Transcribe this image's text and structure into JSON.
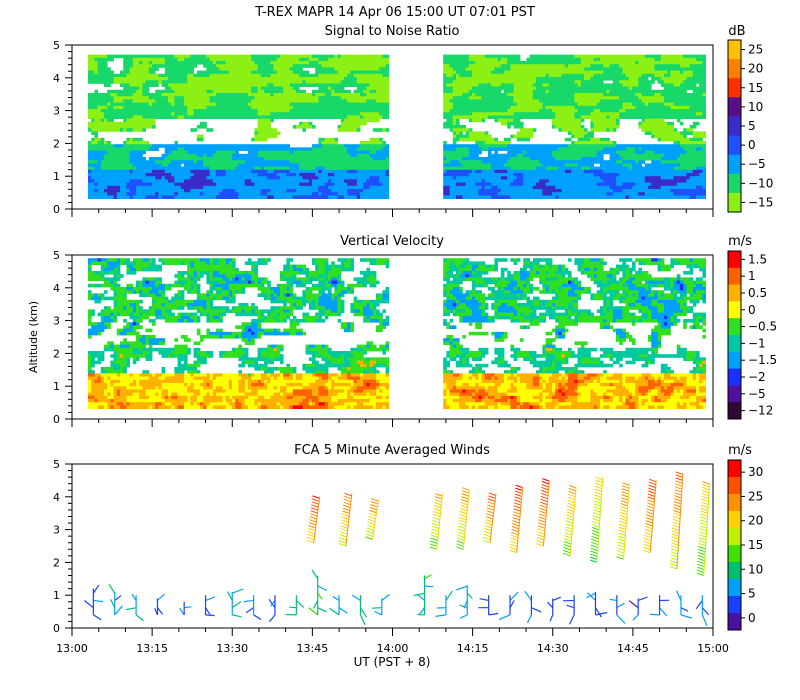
{
  "header": {
    "title": "T-REX   MAPR 14 Apr 06   15:00 UT   07:01   PST"
  },
  "y_axis_label": "Altitude (km)",
  "x_axis_label": "UT  (PST + 8)",
  "chart_data": [
    {
      "type": "heatmap",
      "title": "Signal to Noise Ratio",
      "colorbar_unit": "dB",
      "colorbar_ticks": [
        "25",
        "20",
        "15",
        "10",
        "5",
        "0",
        "−5",
        "−10",
        "−15"
      ],
      "colorbar_colors": [
        "#ffc000",
        "#ff8000",
        "#ff3000",
        "#5a0f8a",
        "#3a2cc8",
        "#1e50ff",
        "#00a0ff",
        "#18d86a",
        "#8cf014"
      ],
      "xlim": [
        "13:00",
        "15:00"
      ],
      "ylim": [
        0,
        5
      ],
      "y_ticks": [
        "0",
        "1",
        "2",
        "3",
        "4",
        "5"
      ],
      "data_gap": [
        "13:59",
        "14:09"
      ]
    },
    {
      "type": "heatmap",
      "title": "Vertical Velocity",
      "colorbar_unit": "m/s",
      "colorbar_ticks": [
        "1.5",
        "1",
        "0.5",
        "0",
        "−0.5",
        "−1",
        "−1.5",
        "−2",
        "−5",
        "−12"
      ],
      "colorbar_colors": [
        "#ff0000",
        "#ff6000",
        "#ffb000",
        "#ffff00",
        "#30e020",
        "#00c8a0",
        "#00a0ff",
        "#1a30ff",
        "#5010a0",
        "#300830"
      ],
      "xlim": [
        "13:00",
        "15:00"
      ],
      "ylim": [
        0,
        5
      ],
      "y_ticks": [
        "0",
        "1",
        "2",
        "3",
        "4",
        "5"
      ],
      "data_gap": [
        "13:59",
        "14:09"
      ]
    },
    {
      "type": "scatter",
      "title": "FCA 5 Minute Averaged Winds",
      "colorbar_unit": "m/s",
      "colorbar_ticks": [
        "30",
        "25",
        "20",
        "15",
        "10",
        "5",
        "0"
      ],
      "colorbar_colors": [
        "#ff0000",
        "#ff5000",
        "#ff9000",
        "#ffd000",
        "#c0f000",
        "#40e000",
        "#00c070",
        "#00a0ff",
        "#1a40ff",
        "#4a10a0"
      ],
      "xlim": [
        "13:00",
        "15:00"
      ],
      "ylim": [
        0,
        5
      ],
      "y_ticks": [
        "0",
        "1",
        "2",
        "3",
        "4",
        "5"
      ],
      "x_ticks": [
        "13:00",
        "13:15",
        "13:30",
        "13:45",
        "14:00",
        "14:15",
        "14:30",
        "14:45",
        "15:00"
      ],
      "low_level_profiles": [
        {
          "time": "13:04",
          "top": 1.2,
          "speed": 5
        },
        {
          "time": "13:08",
          "top": 1.1,
          "speed": 7
        },
        {
          "time": "13:12",
          "top": 1.0,
          "speed": 8
        },
        {
          "time": "13:16",
          "top": 0.9,
          "speed": 5
        },
        {
          "time": "13:21",
          "top": 0.8,
          "speed": 4
        },
        {
          "time": "13:25",
          "top": 1.0,
          "speed": 5
        },
        {
          "time": "13:30",
          "top": 1.1,
          "speed": 8
        },
        {
          "time": "13:34",
          "top": 1.0,
          "speed": 6
        },
        {
          "time": "13:38",
          "top": 1.0,
          "speed": 5
        },
        {
          "time": "13:42",
          "top": 1.0,
          "speed": 9
        },
        {
          "time": "13:46",
          "top": 1.6,
          "speed": 10
        },
        {
          "time": "13:50",
          "top": 1.0,
          "speed": 8
        },
        {
          "time": "13:54",
          "top": 1.0,
          "speed": 9
        },
        {
          "time": "13:58",
          "top": 0.9,
          "speed": 6
        },
        {
          "time": "14:06",
          "top": 1.6,
          "speed": 10
        },
        {
          "time": "14:10",
          "top": 1.0,
          "speed": 7
        },
        {
          "time": "14:14",
          "top": 1.3,
          "speed": 8
        },
        {
          "time": "14:18",
          "top": 1.0,
          "speed": 4
        },
        {
          "time": "14:22",
          "top": 1.0,
          "speed": 5
        },
        {
          "time": "14:26",
          "top": 1.0,
          "speed": 4
        },
        {
          "time": "14:30",
          "top": 0.9,
          "speed": 3
        },
        {
          "time": "14:34",
          "top": 1.0,
          "speed": 3
        },
        {
          "time": "14:38",
          "top": 1.1,
          "speed": 5
        },
        {
          "time": "14:42",
          "top": 1.0,
          "speed": 5
        },
        {
          "time": "14:46",
          "top": 0.9,
          "speed": 4
        },
        {
          "time": "14:50",
          "top": 1.0,
          "speed": 5
        },
        {
          "time": "14:54",
          "top": 1.0,
          "speed": 6
        },
        {
          "time": "14:58",
          "top": 1.0,
          "speed": 7
        }
      ],
      "upper_level_profiles": [
        {
          "time": "13:46",
          "bottom": 2.6,
          "top": 4.0,
          "speed": 25
        },
        {
          "time": "13:52",
          "bottom": 2.5,
          "top": 4.1,
          "speed": 22
        },
        {
          "time": "13:57",
          "bottom": 2.7,
          "top": 3.9,
          "speed": 21
        },
        {
          "time": "14:09",
          "bottom": 2.4,
          "top": 4.1,
          "speed": 19
        },
        {
          "time": "14:14",
          "bottom": 2.4,
          "top": 4.2,
          "speed": 20
        },
        {
          "time": "14:19",
          "bottom": 2.6,
          "top": 4.1,
          "speed": 23
        },
        {
          "time": "14:24",
          "bottom": 2.3,
          "top": 4.3,
          "speed": 25
        },
        {
          "time": "14:29",
          "bottom": 2.5,
          "top": 4.5,
          "speed": 25
        },
        {
          "time": "14:34",
          "bottom": 2.2,
          "top": 4.3,
          "speed": 19
        },
        {
          "time": "14:39",
          "bottom": 2.0,
          "top": 4.6,
          "speed": 17
        },
        {
          "time": "14:44",
          "bottom": 2.1,
          "top": 4.4,
          "speed": 21
        },
        {
          "time": "14:49",
          "bottom": 2.3,
          "top": 4.5,
          "speed": 24
        },
        {
          "time": "14:54",
          "bottom": 1.8,
          "top": 4.7,
          "speed": 22
        },
        {
          "time": "14:59",
          "bottom": 1.6,
          "top": 4.4,
          "speed": 18
        }
      ]
    }
  ]
}
